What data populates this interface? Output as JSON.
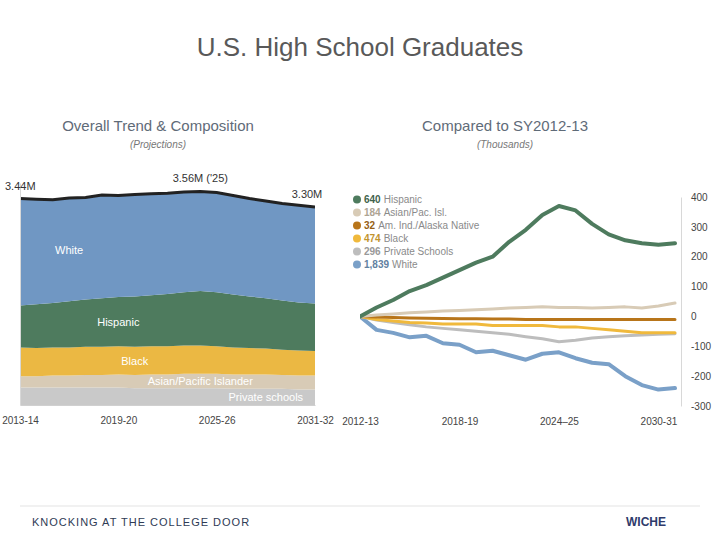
{
  "title": "U.S. High School Graduates",
  "footer": {
    "left": "KNOCKING AT THE COLLEGE DOOR",
    "right": "WICHE"
  },
  "chart_data": [
    {
      "type": "area",
      "title": "Overall Trend & Composition",
      "subtitle": "(Projections)",
      "stacked": true,
      "categories": [
        "2013-14",
        null,
        null,
        null,
        null,
        null,
        "2019-20",
        null,
        null,
        null,
        null,
        null,
        "2025-26",
        null,
        null,
        null,
        null,
        null,
        "2031-32"
      ],
      "series": [
        {
          "name": "Private schools",
          "color": "#c9c9c9",
          "values": [
            0.29,
            0.29,
            0.29,
            0.29,
            0.29,
            0.29,
            0.29,
            0.28,
            0.28,
            0.28,
            0.28,
            0.28,
            0.28,
            0.27,
            0.27,
            0.27,
            0.27,
            0.26,
            0.26
          ]
        },
        {
          "name": "Asian/Pacific Islander",
          "color": "#d8cbb6",
          "values": [
            0.19,
            0.19,
            0.2,
            0.2,
            0.21,
            0.21,
            0.22,
            0.22,
            0.23,
            0.23,
            0.24,
            0.24,
            0.24,
            0.24,
            0.24,
            0.24,
            0.23,
            0.23,
            0.23
          ]
        },
        {
          "name": "Black",
          "color": "#ebb843",
          "values": [
            0.48,
            0.47,
            0.47,
            0.47,
            0.47,
            0.47,
            0.47,
            0.47,
            0.47,
            0.47,
            0.47,
            0.47,
            0.46,
            0.45,
            0.44,
            0.43,
            0.42,
            0.42,
            0.41
          ]
        },
        {
          "name": "Hispanic",
          "color": "#4e7b5e",
          "values": [
            0.7,
            0.73,
            0.74,
            0.77,
            0.79,
            0.81,
            0.82,
            0.84,
            0.85,
            0.87,
            0.89,
            0.91,
            0.9,
            0.88,
            0.86,
            0.84,
            0.82,
            0.8,
            0.79
          ]
        },
        {
          "name": "White",
          "color": "#7097c3",
          "values": [
            1.78,
            1.75,
            1.72,
            1.72,
            1.7,
            1.72,
            1.69,
            1.7,
            1.69,
            1.68,
            1.67,
            1.66,
            1.66,
            1.65,
            1.63,
            1.62,
            1.62,
            1.62,
            1.61
          ]
        }
      ],
      "annotations": [
        {
          "label": "3.44M",
          "value": 3.44,
          "x": 0
        },
        {
          "label": "3.56M ('25)",
          "value": 3.56,
          "x": 11
        },
        {
          "label": "3.30M",
          "value": 3.3,
          "x": 18
        }
      ],
      "ylim": [
        0,
        3.7
      ],
      "yticks": [],
      "tick_labels": "x"
    },
    {
      "type": "line",
      "title": "Compared to SY2012-13",
      "subtitle": "(Thousands)",
      "legend": "upper left",
      "categories": [
        "2012-13",
        null,
        null,
        null,
        null,
        null,
        "2018-19",
        null,
        null,
        null,
        null,
        null,
        "2024–25",
        null,
        null,
        null,
        null,
        null,
        "2030-31",
        null
      ],
      "series": [
        {
          "name": "Hispanic",
          "baseline": 640,
          "color": "#4e7b5e",
          "values": [
            0,
            30,
            55,
            85,
            105,
            130,
            155,
            180,
            200,
            250,
            290,
            340,
            370,
            355,
            310,
            275,
            255,
            245,
            240,
            245
          ]
        },
        {
          "name": "Asian/Pac. Isl.",
          "baseline": 184,
          "color": "#d8cbb6",
          "values": [
            0,
            5,
            8,
            12,
            15,
            18,
            20,
            22,
            25,
            28,
            30,
            32,
            30,
            30,
            28,
            30,
            32,
            28,
            35,
            45
          ]
        },
        {
          "name": "Am. Ind./Alaska Native",
          "baseline": 32,
          "color": "#b8751a",
          "values": [
            0,
            -2,
            -4,
            -5,
            -6,
            -7,
            -8,
            -8,
            -9,
            -9,
            -10,
            -10,
            -10,
            -10,
            -10,
            -10,
            -10,
            -10,
            -10,
            -10
          ]
        },
        {
          "name": "Black",
          "baseline": 474,
          "color": "#f0b93c",
          "values": [
            0,
            -10,
            -15,
            -20,
            -22,
            -25,
            -25,
            -25,
            -30,
            -30,
            -30,
            -30,
            -35,
            -35,
            -40,
            -45,
            -50,
            -55,
            -55,
            -55
          ]
        },
        {
          "name": "Private Schools",
          "baseline": 296,
          "color": "#bdbdbd",
          "values": [
            0,
            -12,
            -20,
            -28,
            -35,
            -40,
            -45,
            -50,
            -55,
            -60,
            -68,
            -75,
            -85,
            -80,
            -72,
            -68,
            -65,
            -62,
            -60,
            -58
          ]
        },
        {
          "name": "White",
          "baseline": {
            "value": 1839,
            "label": "1,839"
          },
          "color": "#7aa0c8",
          "values": [
            0,
            -45,
            -55,
            -70,
            -65,
            -90,
            -95,
            -120,
            -115,
            -130,
            -145,
            -125,
            -120,
            -140,
            -155,
            -160,
            -200,
            -230,
            -245,
            -240
          ]
        }
      ],
      "ylim": [
        -300,
        400
      ],
      "yticks": [
        -300,
        -200,
        -100,
        0,
        100,
        200,
        300,
        400
      ]
    }
  ]
}
